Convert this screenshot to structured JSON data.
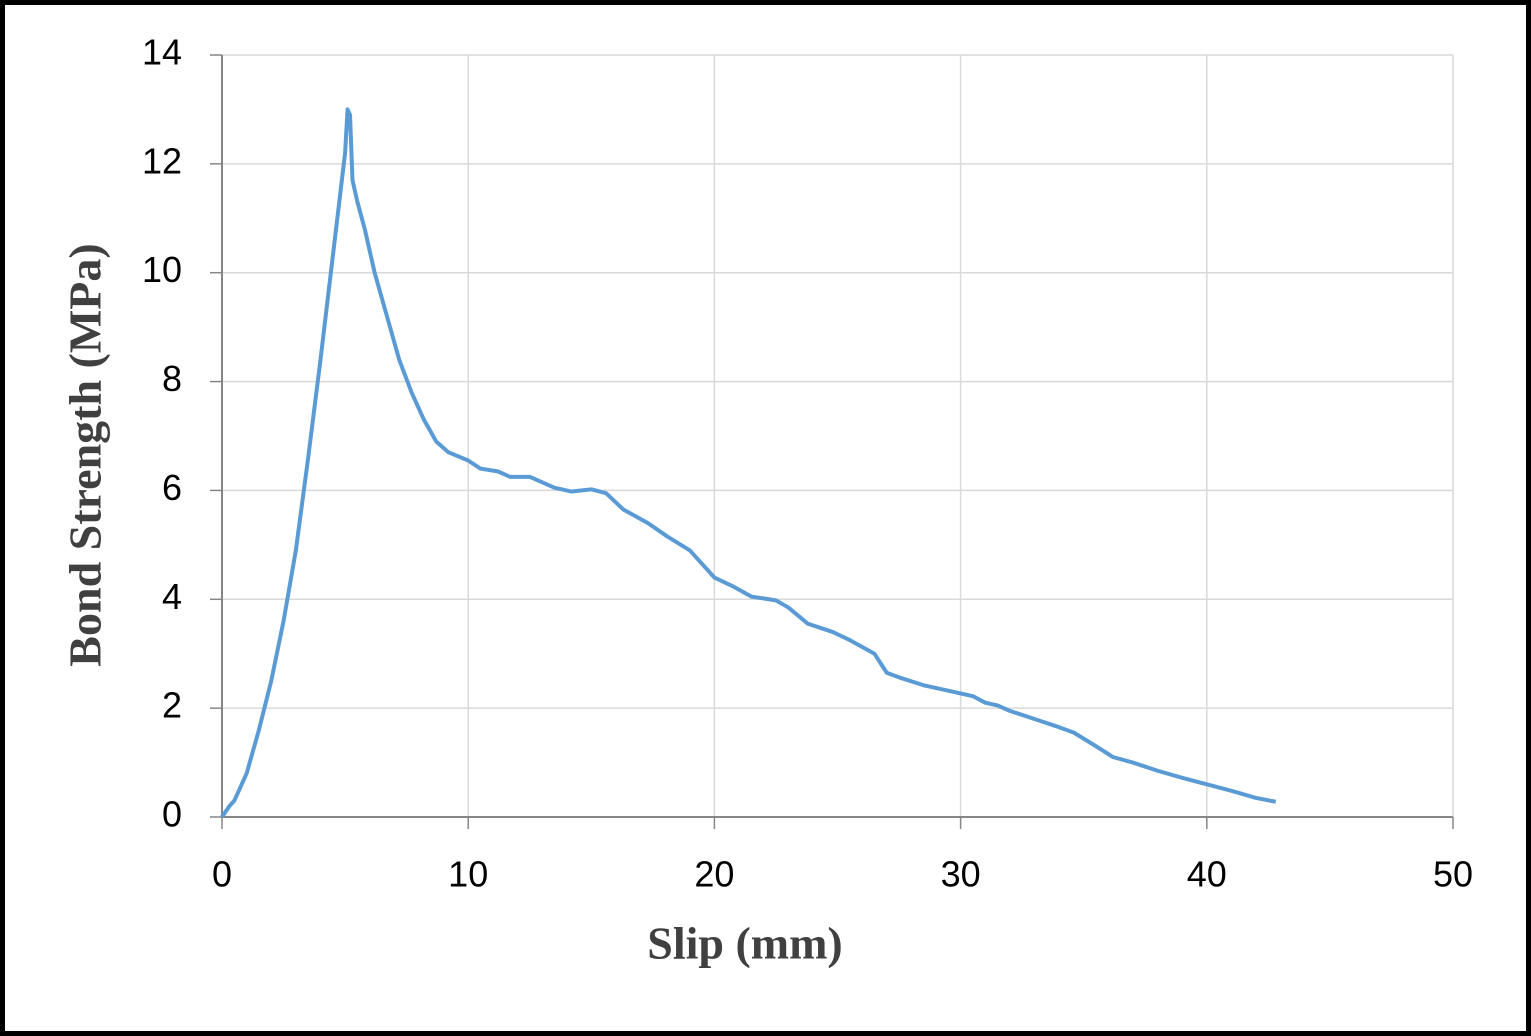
{
  "chart_data": {
    "type": "line",
    "x_label": "Slip (mm)",
    "y_label": "Bond Strength (MPa)",
    "x": [
      0,
      0.3,
      0.5,
      1,
      1.5,
      2,
      2.5,
      3,
      3.5,
      4,
      4.5,
      5,
      5.1,
      5.2,
      5.3,
      5.5,
      5.8,
      6.2,
      6.7,
      7.2,
      7.7,
      8.2,
      8.7,
      9.2,
      10,
      10.5,
      11.2,
      11.7,
      12.5,
      13.5,
      14.2,
      15,
      15.6,
      16.3,
      17.3,
      18.1,
      19,
      19.5,
      20,
      20.7,
      21.5,
      22.5,
      23,
      23.8,
      24.8,
      25.5,
      26.5,
      27,
      27.6,
      28.5,
      29.5,
      30.5,
      31,
      31.5,
      32,
      33,
      34,
      34.6,
      35.5,
      36.2,
      37,
      38,
      39,
      40,
      41,
      42,
      42.8
    ],
    "values": [
      0,
      0.2,
      0.3,
      0.8,
      1.6,
      2.5,
      3.6,
      4.9,
      6.6,
      8.4,
      10.3,
      12.2,
      13.0,
      12.9,
      11.7,
      11.3,
      10.8,
      10.0,
      9.2,
      8.4,
      7.8,
      7.3,
      6.9,
      6.7,
      6.55,
      6.4,
      6.35,
      6.25,
      6.25,
      6.05,
      5.98,
      6.02,
      5.95,
      5.65,
      5.4,
      5.15,
      4.9,
      4.65,
      4.4,
      4.25,
      4.05,
      3.98,
      3.85,
      3.55,
      3.4,
      3.25,
      3.0,
      2.65,
      2.55,
      2.42,
      2.32,
      2.22,
      2.1,
      2.05,
      1.95,
      1.8,
      1.65,
      1.55,
      1.3,
      1.1,
      1.0,
      0.85,
      0.72,
      0.6,
      0.48,
      0.35,
      0.28
    ],
    "color": "#5b9bd5",
    "xlim": [
      0,
      50
    ],
    "ylim": [
      0,
      14
    ],
    "xticks": [
      0,
      10,
      20,
      30,
      40,
      50
    ],
    "yticks": [
      0,
      2,
      4,
      6,
      8,
      10,
      12,
      14
    ],
    "grid": true
  }
}
